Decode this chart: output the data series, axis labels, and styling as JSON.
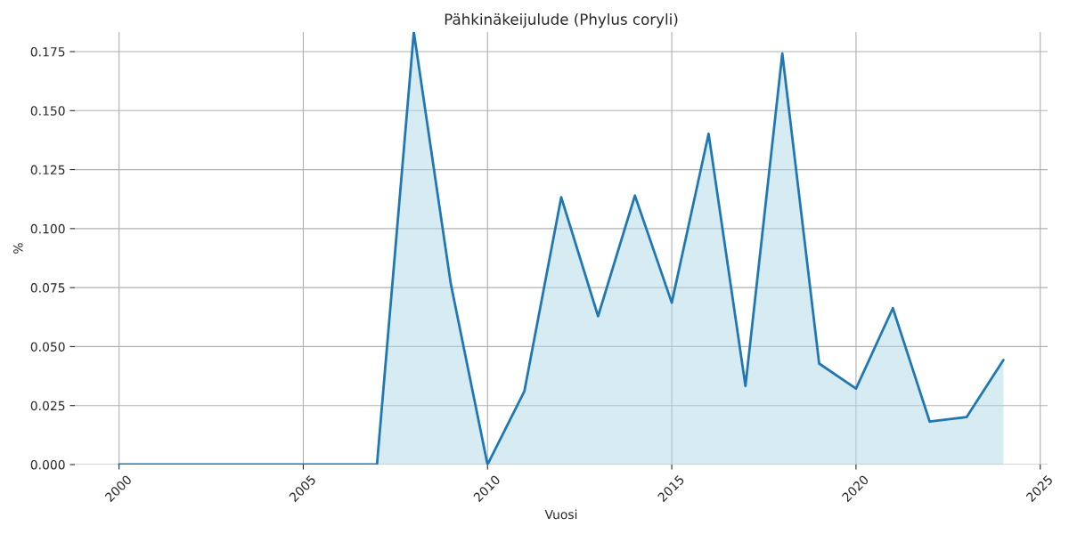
{
  "chart_data": {
    "type": "area",
    "title": "Pähkinäkeijulude (Phylus coryli)",
    "xlabel": "Vuosi",
    "ylabel": "%",
    "x": [
      2000,
      2001,
      2002,
      2003,
      2004,
      2005,
      2006,
      2007,
      2008,
      2009,
      2010,
      2011,
      2012,
      2013,
      2014,
      2015,
      2016,
      2017,
      2018,
      2019,
      2020,
      2021,
      2022,
      2023,
      2024
    ],
    "series": [
      {
        "color": "#1f77b4",
        "values": [
          0,
          0,
          0,
          0,
          0,
          0,
          0,
          0,
          0.1833,
          0.0769,
          0,
          0.0311,
          0.1133,
          0.0629,
          0.114,
          0.0686,
          0.1402,
          0.0333,
          0.1742,
          0.0428,
          0.0322,
          0.0663,
          0.0182,
          0.0201,
          0.0443
        ]
      }
    ],
    "xlim": [
      1998.8,
      2025.2
    ],
    "ylim": [
      0,
      0.1833
    ],
    "xticks": [
      2000,
      2005,
      2010,
      2015,
      2020,
      2025
    ],
    "yticks": [
      {
        "value": 0,
        "label": "0.000"
      },
      {
        "value": 0.025,
        "label": "0.025"
      },
      {
        "value": 0.05,
        "label": "0.050"
      },
      {
        "value": 0.075,
        "label": "0.075"
      },
      {
        "value": 0.1,
        "label": "0.100"
      },
      {
        "value": 0.125,
        "label": "0.125"
      },
      {
        "value": 0.15,
        "label": "0.150"
      },
      {
        "value": 0.175,
        "label": "0.175"
      }
    ],
    "grid": true
  }
}
